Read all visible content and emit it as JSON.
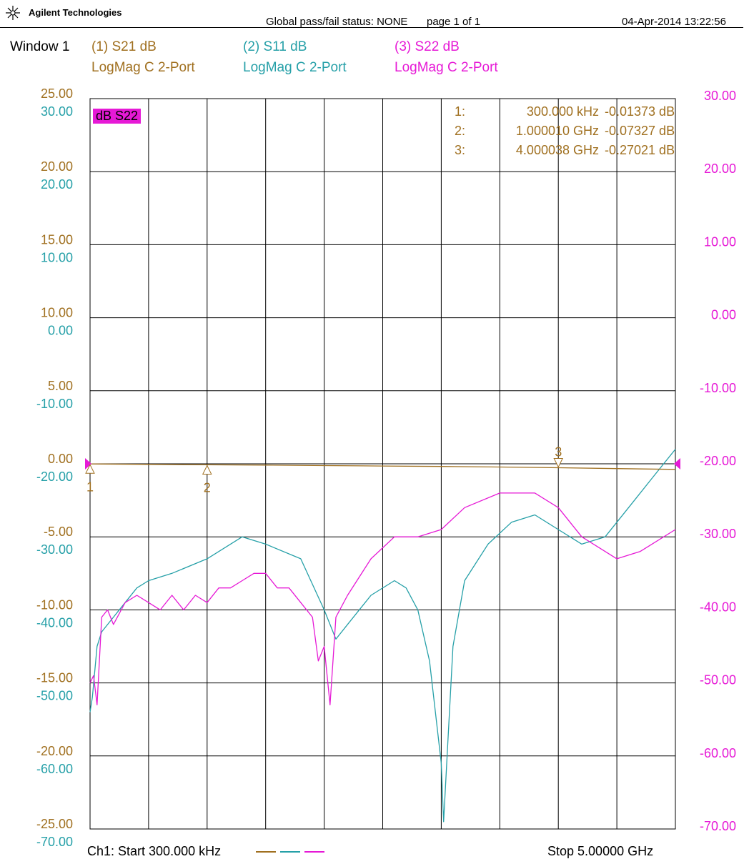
{
  "header": {
    "brand": "Agilent Technologies",
    "status": "Global pass/fail status: NONE",
    "page": "page  1 of 1",
    "datetime": "04-Apr-2014   13:22:56"
  },
  "window_label": "Window 1",
  "colors": {
    "s21": "#a07020",
    "s11": "#26a0a8",
    "s22": "#e619d6",
    "grid": "#000000"
  },
  "traces": [
    {
      "title": "(1) S21 dB",
      "format": "LogMag C  2-Port"
    },
    {
      "title": "(2) S11 dB",
      "format": "LogMag C  2-Port"
    },
    {
      "title": "(3) S22 dB",
      "format": "LogMag C  2-Port"
    }
  ],
  "active_badge": "dB S22",
  "markers_table": [
    {
      "num": "1:",
      "freq": "300.000 kHz",
      "value": "-0.01373 dB"
    },
    {
      "num": "2:",
      "freq": "1.000010 GHz",
      "value": "-0.07327 dB"
    },
    {
      "num": "3:",
      "freq": "4.000038 GHz",
      "value": "-0.27021 dB"
    }
  ],
  "footer": {
    "start": "Ch1: Start  300.000 kHz",
    "stop": "Stop  5.00000 GHz"
  },
  "chart_data": {
    "type": "line",
    "xlabel": "",
    "x_unit": "GHz",
    "xlim": [
      0.0003,
      5.0
    ],
    "axes": {
      "s21": {
        "ticks": [
          "25.00",
          "20.00",
          "15.00",
          "10.00",
          "5.00",
          "0.00",
          "-5.00",
          "-10.00",
          "-15.00",
          "-20.00",
          "-25.00"
        ],
        "ylim": [
          -25,
          25
        ]
      },
      "s11": {
        "ticks": [
          "30.00",
          "20.00",
          "10.00",
          "0.00",
          "-10.00",
          "-20.00",
          "-30.00",
          "-40.00",
          "-50.00",
          "-60.00",
          "-70.00"
        ],
        "ylim": [
          -70,
          30
        ]
      },
      "s22": {
        "ticks": [
          "30.00",
          "20.00",
          "10.00",
          "0.00",
          "-10.00",
          "-20.00",
          "-30.00",
          "-40.00",
          "-50.00",
          "-60.00",
          "-70.00"
        ],
        "ylim": [
          -70,
          30
        ]
      }
    },
    "grid": true,
    "series": [
      {
        "name": "S21",
        "axis": "s21",
        "x": [
          0.0003,
          0.5,
          1.0,
          1.5,
          2.0,
          2.5,
          3.0,
          3.5,
          4.0,
          4.5,
          5.0
        ],
        "y": [
          -0.01,
          -0.04,
          -0.07,
          -0.09,
          -0.12,
          -0.15,
          -0.18,
          -0.22,
          -0.27,
          -0.33,
          -0.38
        ]
      },
      {
        "name": "S11",
        "axis": "s11",
        "x": [
          0.0003,
          0.02,
          0.06,
          0.1,
          0.2,
          0.3,
          0.4,
          0.5,
          0.7,
          1.0,
          1.3,
          1.5,
          1.8,
          2.0,
          2.1,
          2.2,
          2.4,
          2.6,
          2.7,
          2.8,
          2.9,
          3.0,
          3.02,
          3.05,
          3.1,
          3.2,
          3.4,
          3.6,
          3.8,
          4.0,
          4.2,
          4.4,
          4.6,
          4.8,
          5.0
        ],
        "y": [
          -54,
          -52,
          -45,
          -43,
          -41,
          -39,
          -37,
          -36,
          -35,
          -33,
          -30,
          -31,
          -33,
          -40,
          -44,
          -42,
          -38,
          -36,
          -37,
          -40,
          -47,
          -61,
          -69,
          -60,
          -45,
          -36,
          -31,
          -28,
          -27,
          -29,
          -31,
          -30,
          -26,
          -22,
          -18
        ]
      },
      {
        "name": "S22",
        "axis": "s22",
        "x": [
          0.0003,
          0.03,
          0.06,
          0.1,
          0.15,
          0.2,
          0.3,
          0.4,
          0.5,
          0.6,
          0.7,
          0.8,
          0.9,
          1.0,
          1.1,
          1.2,
          1.3,
          1.4,
          1.5,
          1.6,
          1.7,
          1.8,
          1.9,
          1.95,
          2.0,
          2.05,
          2.1,
          2.2,
          2.4,
          2.6,
          2.8,
          3.0,
          3.2,
          3.5,
          3.8,
          4.0,
          4.2,
          4.5,
          4.7,
          5.0
        ],
        "y": [
          -50,
          -49,
          -53,
          -41,
          -40,
          -42,
          -39,
          -38,
          -39,
          -40,
          -38,
          -40,
          -38,
          -39,
          -37,
          -37,
          -36,
          -35,
          -35,
          -37,
          -37,
          -39,
          -41,
          -47,
          -45,
          -53,
          -41,
          -38,
          -33,
          -30,
          -30,
          -29,
          -26,
          -24,
          -24,
          -26,
          -30,
          -33,
          -32,
          -29
        ]
      }
    ],
    "markers": [
      {
        "label": "1",
        "x": 0.0003,
        "y": -0.01373
      },
      {
        "label": "2",
        "x": 1.00001,
        "y": -0.07327
      },
      {
        "label": "3",
        "x": 4.000038,
        "y": -0.27021
      }
    ]
  }
}
